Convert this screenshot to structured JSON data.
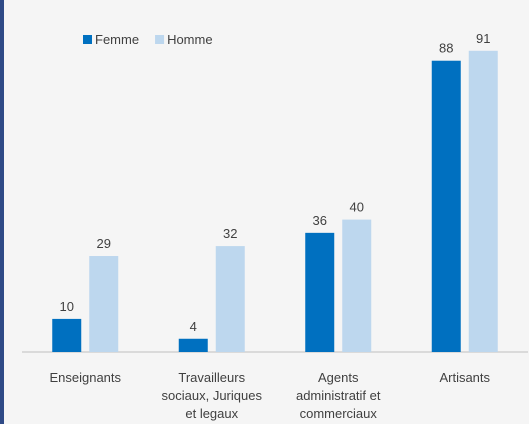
{
  "chart_data": {
    "type": "bar",
    "categories": [
      "Enseignants",
      "Travailleurs sociaux, Juriques et legaux",
      "Agents administratif et commerciaux",
      "Artisants"
    ],
    "series": [
      {
        "name": "Femme",
        "color": "#0070c0",
        "values": [
          10,
          4,
          36,
          88
        ]
      },
      {
        "name": "Homme",
        "color": "#bdd7ee",
        "values": [
          29,
          32,
          40,
          91
        ]
      }
    ],
    "ylim": [
      0,
      100
    ],
    "legend": "top-left"
  }
}
